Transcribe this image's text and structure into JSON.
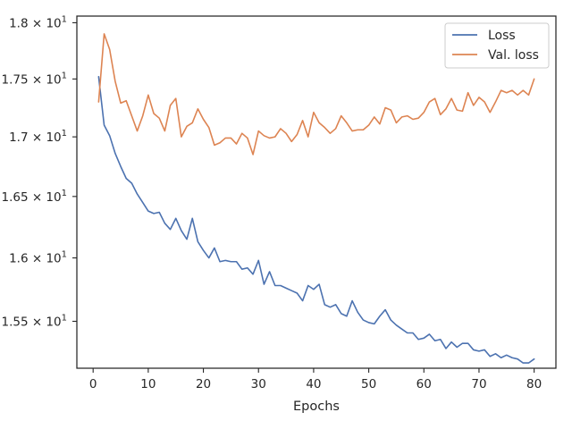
{
  "chart_data": {
    "type": "line",
    "title": "",
    "xlabel": "Epochs",
    "ylabel": "",
    "yscale": "log",
    "xlim": [
      -2.95,
      83.95
    ],
    "ylim": [
      15.14,
      18.06
    ],
    "xticks": [
      0,
      10,
      20,
      30,
      40,
      50,
      60,
      70,
      80
    ],
    "yticks": [
      {
        "value": 15.5,
        "mantissa": "1.55",
        "exponent": "1"
      },
      {
        "value": 16.0,
        "mantissa": "1.6",
        "exponent": "1"
      },
      {
        "value": 16.5,
        "mantissa": "1.65",
        "exponent": "1"
      },
      {
        "value": 17.0,
        "mantissa": "1.7",
        "exponent": "1"
      },
      {
        "value": 17.5,
        "mantissa": "1.75",
        "exponent": "1"
      },
      {
        "value": 18.0,
        "mantissa": "1.8",
        "exponent": "1"
      }
    ],
    "times_symbol": "×",
    "grid": false,
    "legend_position": "top-right",
    "x": [
      1,
      2,
      3,
      4,
      5,
      6,
      7,
      8,
      9,
      10,
      11,
      12,
      13,
      14,
      15,
      16,
      17,
      18,
      19,
      20,
      21,
      22,
      23,
      24,
      25,
      26,
      27,
      28,
      29,
      30,
      31,
      32,
      33,
      34,
      35,
      36,
      37,
      38,
      39,
      40,
      41,
      42,
      43,
      44,
      45,
      46,
      47,
      48,
      49,
      50,
      51,
      52,
      53,
      54,
      55,
      56,
      57,
      58,
      59,
      60,
      61,
      62,
      63,
      64,
      65,
      66,
      67,
      68,
      69,
      70,
      71,
      72,
      73,
      74,
      75,
      76,
      77,
      78,
      79,
      80
    ],
    "series": [
      {
        "name": "Loss",
        "color": "#4c72b0",
        "values": [
          17.52,
          17.1,
          17.01,
          16.86,
          16.75,
          16.65,
          16.61,
          16.52,
          16.45,
          16.38,
          16.36,
          16.37,
          16.28,
          16.23,
          16.32,
          16.22,
          16.15,
          16.32,
          16.13,
          16.06,
          16.0,
          16.08,
          15.97,
          15.98,
          15.97,
          15.97,
          15.91,
          15.92,
          15.87,
          15.98,
          15.79,
          15.89,
          15.78,
          15.78,
          15.76,
          15.74,
          15.72,
          15.66,
          15.78,
          15.75,
          15.79,
          15.63,
          15.61,
          15.63,
          15.56,
          15.54,
          15.66,
          15.57,
          15.51,
          15.49,
          15.48,
          15.54,
          15.59,
          15.51,
          15.47,
          15.44,
          15.41,
          15.41,
          15.36,
          15.37,
          15.4,
          15.35,
          15.36,
          15.29,
          15.34,
          15.3,
          15.33,
          15.33,
          15.28,
          15.27,
          15.28,
          15.23,
          15.25,
          15.22,
          15.24,
          15.22,
          15.21,
          15.18,
          15.18,
          15.21
        ]
      },
      {
        "name": "Val. loss",
        "color": "#dd8452",
        "values": [
          17.3,
          17.9,
          17.76,
          17.48,
          17.29,
          17.31,
          17.18,
          17.05,
          17.18,
          17.36,
          17.2,
          17.16,
          17.05,
          17.27,
          17.33,
          17.0,
          17.09,
          17.12,
          17.24,
          17.15,
          17.08,
          16.93,
          16.95,
          16.99,
          16.99,
          16.94,
          17.03,
          16.99,
          16.85,
          17.05,
          17.01,
          16.99,
          17.0,
          17.07,
          17.03,
          16.96,
          17.02,
          17.14,
          17.0,
          17.21,
          17.12,
          17.08,
          17.03,
          17.07,
          17.18,
          17.12,
          17.05,
          17.06,
          17.06,
          17.1,
          17.17,
          17.11,
          17.25,
          17.23,
          17.12,
          17.17,
          17.18,
          17.15,
          17.16,
          17.21,
          17.3,
          17.33,
          17.19,
          17.24,
          17.33,
          17.23,
          17.22,
          17.38,
          17.27,
          17.34,
          17.3,
          17.21,
          17.3,
          17.4,
          17.38,
          17.4,
          17.36,
          17.4,
          17.36,
          17.5
        ]
      }
    ]
  }
}
